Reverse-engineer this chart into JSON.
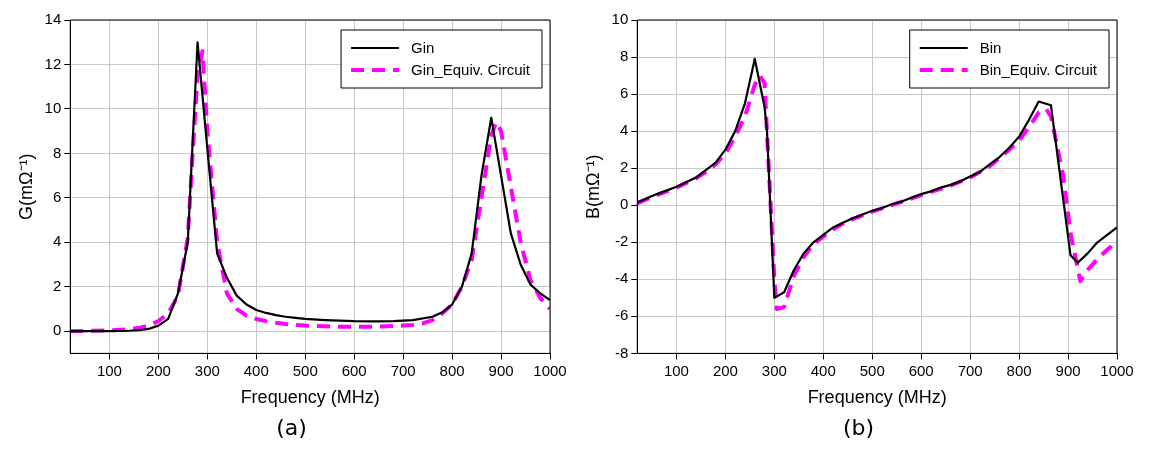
{
  "chart_data": [
    {
      "type": "line",
      "xlabel": "Frequency (MHz)",
      "ylabel": "G(mΩ⁻¹)",
      "xlim": [
        20,
        1000
      ],
      "xticks": [
        100,
        200,
        300,
        400,
        500,
        600,
        700,
        800,
        900,
        1000
      ],
      "ylim": [
        -1,
        14
      ],
      "yticks": [
        0,
        2,
        4,
        6,
        8,
        10,
        12,
        14
      ],
      "grid": true,
      "legend": "top right",
      "annotations": [
        "(a)"
      ],
      "series": [
        {
          "name": "Gin",
          "color": "#000000",
          "line_style": "solid",
          "x": [
            20,
            60,
            100,
            140,
            160,
            180,
            200,
            220,
            240,
            260,
            280,
            300,
            320,
            340,
            360,
            380,
            400,
            420,
            440,
            460,
            480,
            500,
            540,
            600,
            640,
            680,
            720,
            760,
            780,
            800,
            820,
            840,
            860,
            880,
            900,
            920,
            940,
            960,
            980,
            1000
          ],
          "values": [
            0,
            0,
            0,
            0.02,
            0.05,
            0.1,
            0.25,
            0.55,
            1.7,
            4,
            13,
            8.2,
            3.5,
            2.4,
            1.6,
            1.2,
            0.95,
            0.82,
            0.72,
            0.65,
            0.6,
            0.55,
            0.5,
            0.45,
            0.44,
            0.45,
            0.5,
            0.65,
            0.85,
            1.2,
            2,
            3.5,
            7,
            9.6,
            7,
            4.4,
            3,
            2.1,
            1.7,
            1.4
          ]
        },
        {
          "name": "Gin_Equiv. Circuit",
          "color": "#ff00ff",
          "line_style": "dashed",
          "x": [
            20,
            60,
            100,
            140,
            160,
            180,
            200,
            220,
            240,
            260,
            270,
            280,
            290,
            300,
            320,
            340,
            360,
            380,
            400,
            420,
            440,
            460,
            480,
            500,
            560,
            640,
            700,
            720,
            740,
            760,
            780,
            800,
            820,
            840,
            860,
            880,
            890,
            900,
            920,
            940,
            960,
            980,
            1000
          ],
          "values": [
            0,
            0.02,
            0.03,
            0.08,
            0.15,
            0.25,
            0.45,
            0.8,
            1.6,
            4.2,
            8,
            11.5,
            12.6,
            9,
            4,
            1.7,
            1,
            0.7,
            0.55,
            0.45,
            0.38,
            0.32,
            0.28,
            0.25,
            0.2,
            0.2,
            0.25,
            0.28,
            0.35,
            0.5,
            0.8,
            1.2,
            2,
            3.2,
            6,
            8.8,
            9.4,
            9,
            6.5,
            4,
            2.3,
            1.5,
            1
          ]
        }
      ]
    },
    {
      "type": "line",
      "xlabel": "Frequency (MHz)",
      "ylabel": "B(mΩ⁻¹)",
      "xlim": [
        20,
        1000
      ],
      "xticks": [
        100,
        200,
        300,
        400,
        500,
        600,
        700,
        800,
        900,
        1000
      ],
      "ylim": [
        -8,
        10
      ],
      "yticks": [
        -8,
        -6,
        -4,
        -2,
        0,
        2,
        4,
        6,
        8,
        10
      ],
      "grid": true,
      "legend": "top right",
      "annotations": [
        "(b)"
      ],
      "series": [
        {
          "name": "Bin",
          "color": "#000000",
          "line_style": "solid",
          "x": [
            20,
            60,
            100,
            140,
            160,
            180,
            200,
            220,
            240,
            260,
            270,
            280,
            285,
            300,
            320,
            340,
            360,
            380,
            400,
            420,
            440,
            460,
            480,
            500,
            520,
            540,
            560,
            580,
            600,
            620,
            640,
            660,
            680,
            700,
            720,
            740,
            760,
            780,
            800,
            820,
            840,
            865,
            905,
            920,
            940,
            960,
            980,
            1000
          ],
          "values": [
            0.15,
            0.6,
            1,
            1.5,
            1.9,
            2.3,
            3,
            4,
            5.5,
            7.9,
            6.6,
            5.3,
            4,
            -5,
            -4.7,
            -3.5,
            -2.6,
            -2,
            -1.6,
            -1.2,
            -0.95,
            -0.7,
            -0.5,
            -0.3,
            -0.15,
            0.05,
            0.2,
            0.4,
            0.6,
            0.75,
            0.95,
            1.1,
            1.3,
            1.55,
            1.8,
            2.2,
            2.6,
            3.1,
            3.7,
            4.6,
            5.6,
            5.4,
            -2.7,
            -3.1,
            -2.6,
            -2,
            -1.6,
            -1.2
          ]
        },
        {
          "name": "Bin_Equiv. Circuit",
          "color": "#ff00ff",
          "line_style": "dashed",
          "x": [
            20,
            60,
            100,
            140,
            160,
            180,
            200,
            220,
            240,
            260,
            270,
            280,
            300,
            305,
            320,
            340,
            360,
            380,
            400,
            420,
            440,
            460,
            480,
            500,
            540,
            600,
            660,
            700,
            740,
            780,
            800,
            820,
            840,
            855,
            865,
            890,
            905,
            925,
            940,
            960,
            980,
            1000
          ],
          "values": [
            0.1,
            0.55,
            0.95,
            1.45,
            1.8,
            2.2,
            2.8,
            3.7,
            4.8,
            6.5,
            7,
            6.6,
            -4,
            -5.6,
            -5.5,
            -3.8,
            -2.8,
            -2.1,
            -1.7,
            -1.3,
            -1,
            -0.75,
            -0.55,
            -0.35,
            0,
            0.55,
            1.05,
            1.5,
            2.1,
            3,
            3.5,
            4.2,
            5,
            5.2,
            4.8,
            1.6,
            -1.5,
            -4.1,
            -3.5,
            -2.9,
            -2.4,
            -2
          ]
        }
      ]
    }
  ]
}
